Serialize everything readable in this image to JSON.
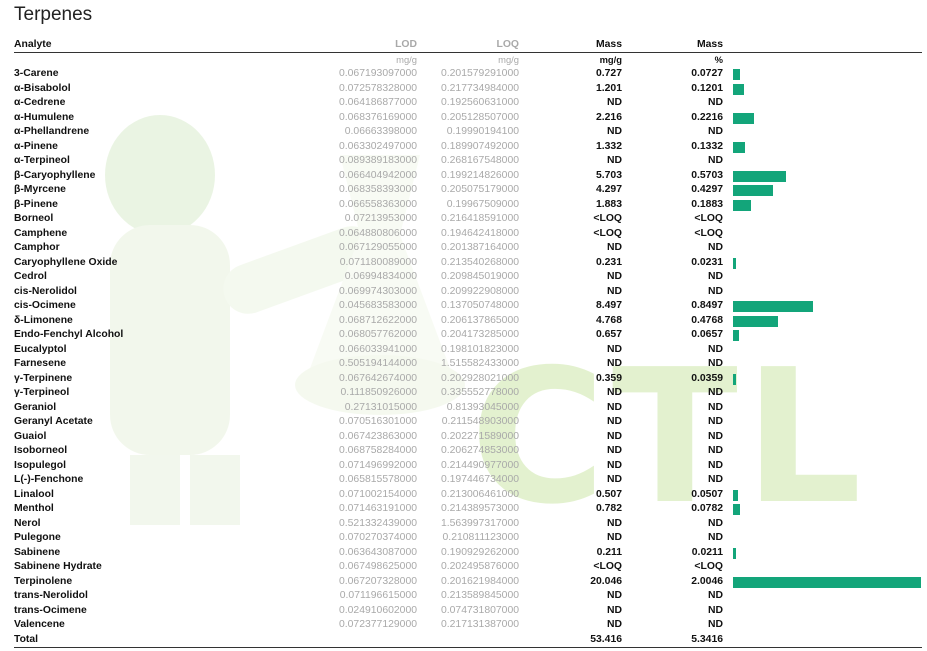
{
  "title": "Terpenes",
  "accent_color": "#13a57a",
  "watermark": {
    "text": "CTL"
  },
  "headers": {
    "analyte": "Analyte",
    "lod": "LOD",
    "loq": "LOQ",
    "mass_mg": "Mass",
    "mass_pct": "Mass"
  },
  "units": {
    "lod": "mg/g",
    "loq": "mg/g",
    "mass_mg": "mg/g",
    "mass_pct": "%"
  },
  "rows": [
    {
      "name": "3-Carene",
      "lod": "0.067193097000",
      "loq": "0.201579291000",
      "mass": "0.727",
      "pct": "0.0727",
      "value": 0.0727
    },
    {
      "name": "α-Bisabolol",
      "lod": "0.072578328000",
      "loq": "0.217734984000",
      "mass": "1.201",
      "pct": "0.1201",
      "value": 0.1201
    },
    {
      "name": "α-Cedrene",
      "lod": "0.064186877000",
      "loq": "0.192560631000",
      "mass": "ND",
      "pct": "ND",
      "value": 0
    },
    {
      "name": "α-Humulene",
      "lod": "0.068376169000",
      "loq": "0.205128507000",
      "mass": "2.216",
      "pct": "0.2216",
      "value": 0.2216
    },
    {
      "name": "α-Phellandrene",
      "lod": "0.06663398000",
      "loq": "0.19990194100",
      "mass": "ND",
      "pct": "ND",
      "value": 0
    },
    {
      "name": "α-Pinene",
      "lod": "0.063302497000",
      "loq": "0.189907492000",
      "mass": "1.332",
      "pct": "0.1332",
      "value": 0.1332
    },
    {
      "name": "α-Terpineol",
      "lod": "0.089389183000",
      "loq": "0.268167548000",
      "mass": "ND",
      "pct": "ND",
      "value": 0
    },
    {
      "name": "β-Caryophyllene",
      "lod": "0.066404942000",
      "loq": "0.199214826000",
      "mass": "5.703",
      "pct": "0.5703",
      "value": 0.5703
    },
    {
      "name": "β-Myrcene",
      "lod": "0.068358393000",
      "loq": "0.205075179000",
      "mass": "4.297",
      "pct": "0.4297",
      "value": 0.4297
    },
    {
      "name": "β-Pinene",
      "lod": "0.066558363000",
      "loq": "0.19967509000",
      "mass": "1.883",
      "pct": "0.1883",
      "value": 0.1883
    },
    {
      "name": "Borneol",
      "lod": "0.07213953000",
      "loq": "0.216418591000",
      "mass": "<LOQ",
      "pct": "<LOQ",
      "value": 0
    },
    {
      "name": "Camphene",
      "lod": "0.064880806000",
      "loq": "0.194642418000",
      "mass": "<LOQ",
      "pct": "<LOQ",
      "value": 0
    },
    {
      "name": "Camphor",
      "lod": "0.067129055000",
      "loq": "0.201387164000",
      "mass": "ND",
      "pct": "ND",
      "value": 0
    },
    {
      "name": "Caryophyllene Oxide",
      "lod": "0.071180089000",
      "loq": "0.213540268000",
      "mass": "0.231",
      "pct": "0.0231",
      "value": 0.0231
    },
    {
      "name": "Cedrol",
      "lod": "0.06994834000",
      "loq": "0.209845019000",
      "mass": "ND",
      "pct": "ND",
      "value": 0
    },
    {
      "name": "cis-Nerolidol",
      "lod": "0.069974303000",
      "loq": "0.209922908000",
      "mass": "ND",
      "pct": "ND",
      "value": 0
    },
    {
      "name": "cis-Ocimene",
      "lod": "0.045683583000",
      "loq": "0.137050748000",
      "mass": "8.497",
      "pct": "0.8497",
      "value": 0.8497
    },
    {
      "name": "δ-Limonene",
      "lod": "0.068712622000",
      "loq": "0.206137865000",
      "mass": "4.768",
      "pct": "0.4768",
      "value": 0.4768
    },
    {
      "name": "Endo-Fenchyl Alcohol",
      "lod": "0.068057762000",
      "loq": "0.204173285000",
      "mass": "0.657",
      "pct": "0.0657",
      "value": 0.0657
    },
    {
      "name": "Eucalyptol",
      "lod": "0.066033941000",
      "loq": "0.198101823000",
      "mass": "ND",
      "pct": "ND",
      "value": 0
    },
    {
      "name": "Farnesene",
      "lod": "0.505194144000",
      "loq": "1.515582433000",
      "mass": "ND",
      "pct": "ND",
      "value": 0
    },
    {
      "name": "γ-Terpinene",
      "lod": "0.067642674000",
      "loq": "0.202928021000",
      "mass": "0.359",
      "pct": "0.0359",
      "value": 0.0359
    },
    {
      "name": "γ-Terpineol",
      "lod": "0.111850926000",
      "loq": "0.335552778000",
      "mass": "ND",
      "pct": "ND",
      "value": 0
    },
    {
      "name": "Geraniol",
      "lod": "0.27131015000",
      "loq": "0.81393045000",
      "mass": "ND",
      "pct": "ND",
      "value": 0
    },
    {
      "name": "Geranyl Acetate",
      "lod": "0.070516301000",
      "loq": "0.211548903000",
      "mass": "ND",
      "pct": "ND",
      "value": 0
    },
    {
      "name": "Guaiol",
      "lod": "0.067423863000",
      "loq": "0.202271589000",
      "mass": "ND",
      "pct": "ND",
      "value": 0
    },
    {
      "name": "Isoborneol",
      "lod": "0.068758284000",
      "loq": "0.206274853000",
      "mass": "ND",
      "pct": "ND",
      "value": 0
    },
    {
      "name": "Isopulegol",
      "lod": "0.071496992000",
      "loq": "0.214490977000",
      "mass": "ND",
      "pct": "ND",
      "value": 0
    },
    {
      "name": "L(-)-Fenchone",
      "lod": "0.065815578000",
      "loq": "0.197446734000",
      "mass": "ND",
      "pct": "ND",
      "value": 0
    },
    {
      "name": "Linalool",
      "lod": "0.071002154000",
      "loq": "0.213006461000",
      "mass": "0.507",
      "pct": "0.0507",
      "value": 0.0507
    },
    {
      "name": "Menthol",
      "lod": "0.071463191000",
      "loq": "0.214389573000",
      "mass": "0.782",
      "pct": "0.0782",
      "value": 0.0782
    },
    {
      "name": "Nerol",
      "lod": "0.521332439000",
      "loq": "1.563997317000",
      "mass": "ND",
      "pct": "ND",
      "value": 0
    },
    {
      "name": "Pulegone",
      "lod": "0.070270374000",
      "loq": "0.210811123000",
      "mass": "ND",
      "pct": "ND",
      "value": 0
    },
    {
      "name": "Sabinene",
      "lod": "0.063643087000",
      "loq": "0.190929262000",
      "mass": "0.211",
      "pct": "0.0211",
      "value": 0.0211
    },
    {
      "name": "Sabinene Hydrate",
      "lod": "0.067498625000",
      "loq": "0.202495876000",
      "mass": "<LOQ",
      "pct": "<LOQ",
      "value": 0
    },
    {
      "name": "Terpinolene",
      "lod": "0.067207328000",
      "loq": "0.201621984000",
      "mass": "20.046",
      "pct": "2.0046",
      "value": 2.0046
    },
    {
      "name": "trans-Nerolidol",
      "lod": "0.071196615000",
      "loq": "0.213589845000",
      "mass": "ND",
      "pct": "ND",
      "value": 0
    },
    {
      "name": "trans-Ocimene",
      "lod": "0.024910602000",
      "loq": "0.074731807000",
      "mass": "ND",
      "pct": "ND",
      "value": 0
    },
    {
      "name": "Valencene",
      "lod": "0.072377129000",
      "loq": "0.217131387000",
      "mass": "ND",
      "pct": "ND",
      "value": 0
    }
  ],
  "total": {
    "label": "Total",
    "mass": "53.416",
    "pct": "5.3416"
  },
  "bar_scale_max": 2.0046
}
